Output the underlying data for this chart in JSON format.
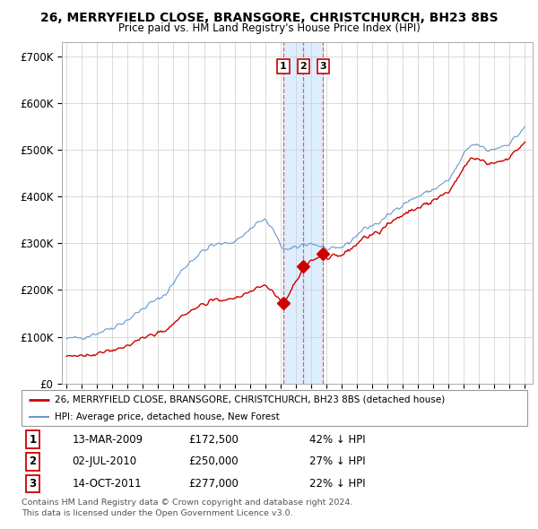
{
  "title": "26, MERRYFIELD CLOSE, BRANSGORE, CHRISTCHURCH, BH23 8BS",
  "subtitle": "Price paid vs. HM Land Registry's House Price Index (HPI)",
  "ylim": [
    0,
    730000
  ],
  "yticks": [
    0,
    100000,
    200000,
    300000,
    400000,
    500000,
    600000,
    700000
  ],
  "ytick_labels": [
    "£0",
    "£100K",
    "£200K",
    "£300K",
    "£400K",
    "£500K",
    "£600K",
    "£700K"
  ],
  "sale_dates": [
    2009.19,
    2010.5,
    2011.79
  ],
  "sale_prices": [
    172500,
    250000,
    277000
  ],
  "sale_labels": [
    "1",
    "2",
    "3"
  ],
  "legend_line1": "26, MERRYFIELD CLOSE, BRANSGORE, CHRISTCHURCH, BH23 8BS (detached house)",
  "legend_line2": "HPI: Average price, detached house, New Forest",
  "table_data": [
    [
      "1",
      "13-MAR-2009",
      "£172,500",
      "42% ↓ HPI"
    ],
    [
      "2",
      "02-JUL-2010",
      "£250,000",
      "27% ↓ HPI"
    ],
    [
      "3",
      "14-OCT-2011",
      "£277,000",
      "22% ↓ HPI"
    ]
  ],
  "footnote1": "Contains HM Land Registry data © Crown copyright and database right 2024.",
  "footnote2": "This data is licensed under the Open Government Licence v3.0.",
  "line_color_red": "#cc0000",
  "line_color_blue": "#6699cc",
  "shade_color": "#ddeeff",
  "dashed_color": "#dd4444",
  "background_color": "#ffffff",
  "grid_color": "#cccccc",
  "xlim_left": 1994.7,
  "xlim_right": 2025.5
}
